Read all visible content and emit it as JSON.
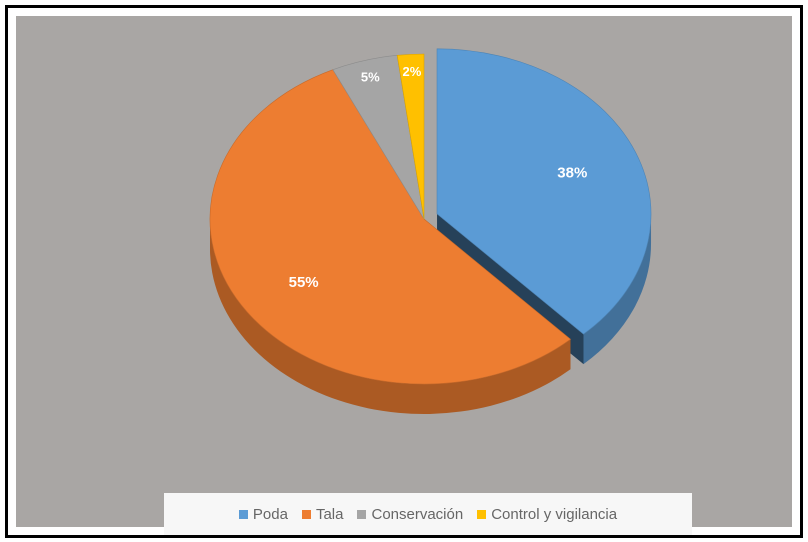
{
  "chart_data": {
    "type": "pie",
    "style": "3d",
    "categories": [
      "Poda",
      "Tala",
      "Conservación",
      "Control y vigilancia"
    ],
    "values": [
      38,
      55,
      5,
      2
    ],
    "data_labels": [
      "38%",
      "55%",
      "5%",
      "2%"
    ],
    "colors": [
      "#5b9bd5",
      "#ed7d31",
      "#a5a5a5",
      "#ffc000"
    ],
    "exploded": "Poda",
    "legend_position": "bottom",
    "title": ""
  }
}
